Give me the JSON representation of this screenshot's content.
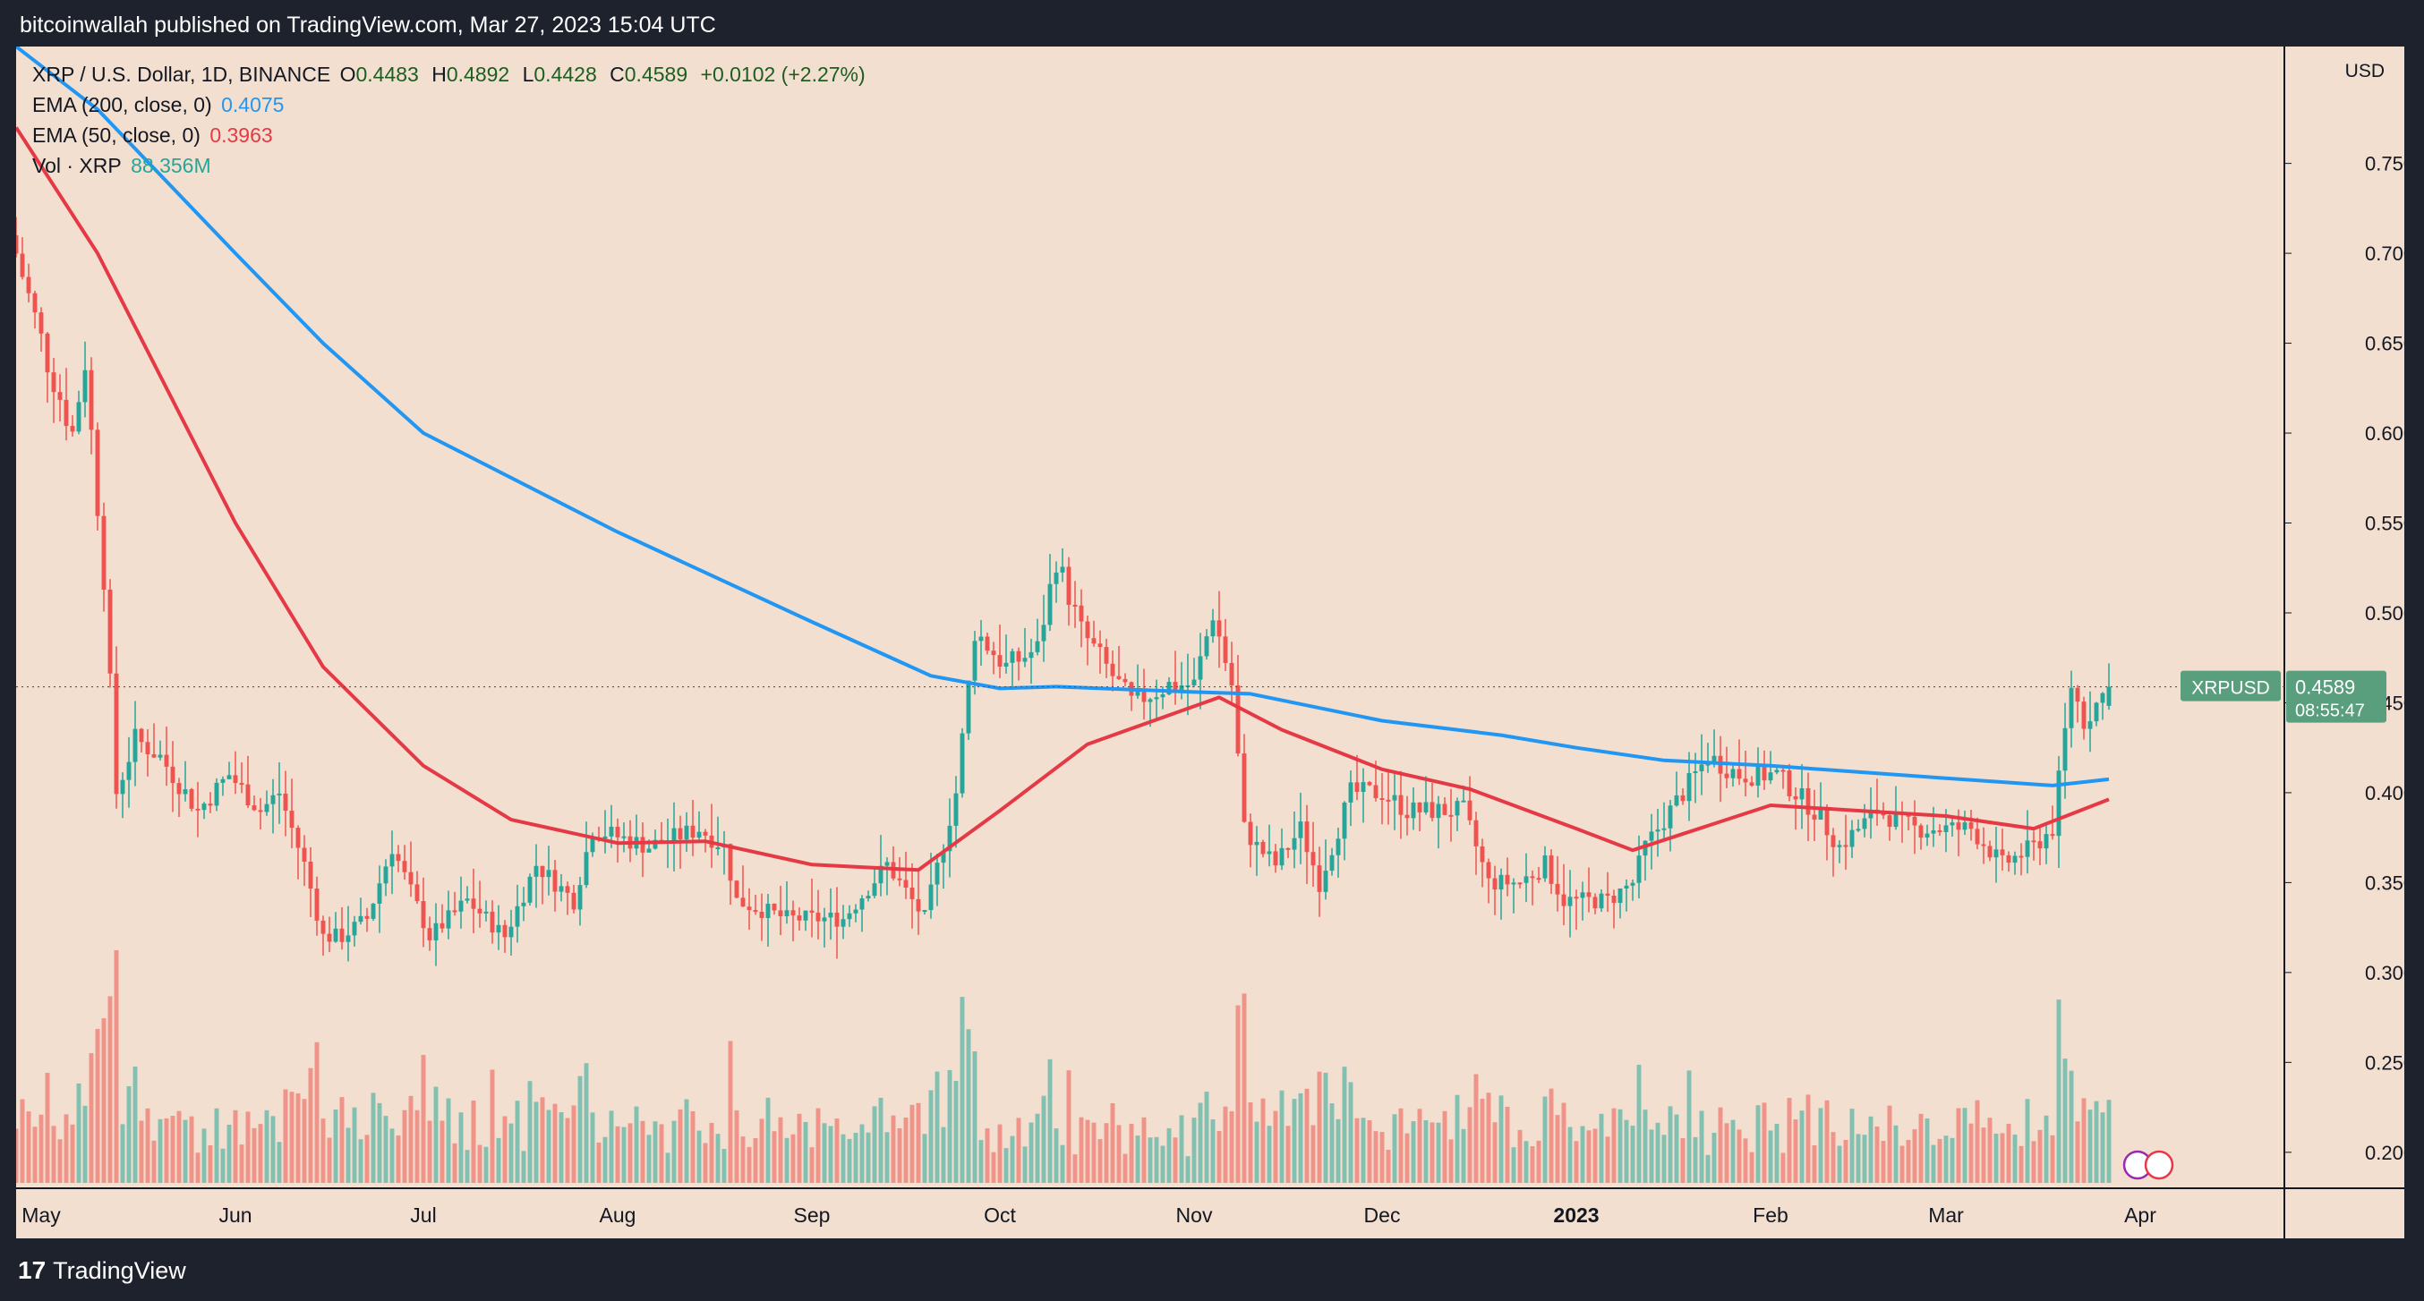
{
  "header": {
    "text": "bitcoinwallah published on TradingView.com, Mar 27, 2023 15:04 UTC"
  },
  "legend": {
    "symbol": "XRP / U.S. Dollar, 1D, BINANCE",
    "o_label": "O",
    "o_value": "0.4483",
    "h_label": "H",
    "h_value": "0.4892",
    "l_label": "L",
    "l_value": "0.4428",
    "c_label": "C",
    "c_value": "0.4589",
    "change": "+0.0102 (+2.27%)",
    "ema200_label": "EMA (200, close, 0)",
    "ema200_value": "0.4075",
    "ema50_label": "EMA (50, close, 0)",
    "ema50_value": "0.3963",
    "vol_label": "Vol · XRP",
    "vol_value": "88.356M"
  },
  "axis": {
    "currency": "USD"
  },
  "price_tag": {
    "symbol": "XRPUSD",
    "price": "0.4589",
    "countdown": "08:55:47"
  },
  "footer": {
    "brand": "TradingView",
    "logo_icon": "tradingview-logo-icon"
  },
  "colors": {
    "background": "#f2dfcf",
    "frame": "#1e222d",
    "up": "#26a69a",
    "down": "#ef5350",
    "ema200": "#2196f3",
    "ema50": "#e53945",
    "tag": "#5a9f7d"
  },
  "chart_data": {
    "type": "candlestick",
    "title": "XRP / U.S. Dollar, 1D, BINANCE",
    "ylim": [
      0.18,
      0.815
    ],
    "xlim": [
      "2022-04-27",
      "2023-04-24"
    ],
    "yticks": [
      "0.2000",
      "0.2500",
      "0.3000",
      "0.3500",
      "0.4000",
      "0.4500",
      "0.5000",
      "0.5500",
      "0.6000",
      "0.6500",
      "0.7000",
      "0.7500"
    ],
    "xticks": [
      {
        "label": "May",
        "date": "2022-05-01"
      },
      {
        "label": "Jun",
        "date": "2022-06-01"
      },
      {
        "label": "Jul",
        "date": "2022-07-01"
      },
      {
        "label": "Aug",
        "date": "2022-08-01"
      },
      {
        "label": "Sep",
        "date": "2022-09-01"
      },
      {
        "label": "Oct",
        "date": "2022-10-01"
      },
      {
        "label": "Nov",
        "date": "2022-11-01"
      },
      {
        "label": "Dec",
        "date": "2022-12-01"
      },
      {
        "label": "2023",
        "date": "2023-01-01",
        "bold": true
      },
      {
        "label": "Feb",
        "date": "2023-02-01"
      },
      {
        "label": "Mar",
        "date": "2023-03-01"
      },
      {
        "label": "Apr",
        "date": "2023-04-01"
      }
    ],
    "first_date": "2022-04-27",
    "last_price": 0.4589,
    "close_path": [
      [
        "2022-04-27",
        0.7
      ],
      [
        "2022-05-02",
        0.64
      ],
      [
        "2022-05-06",
        0.6
      ],
      [
        "2022-05-08",
        0.64
      ],
      [
        "2022-05-11",
        0.52
      ],
      [
        "2022-05-13",
        0.4
      ],
      [
        "2022-05-16",
        0.43
      ],
      [
        "2022-05-20",
        0.42
      ],
      [
        "2022-05-26",
        0.39
      ],
      [
        "2022-05-31",
        0.41
      ],
      [
        "2022-06-05",
        0.39
      ],
      [
        "2022-06-08",
        0.4
      ],
      [
        "2022-06-12",
        0.36
      ],
      [
        "2022-06-15",
        0.32
      ],
      [
        "2022-06-18",
        0.32
      ],
      [
        "2022-06-22",
        0.33
      ],
      [
        "2022-06-26",
        0.37
      ],
      [
        "2022-07-02",
        0.32
      ],
      [
        "2022-07-08",
        0.34
      ],
      [
        "2022-07-14",
        0.32
      ],
      [
        "2022-07-19",
        0.36
      ],
      [
        "2022-07-25",
        0.34
      ],
      [
        "2022-07-28",
        0.38
      ],
      [
        "2022-08-06",
        0.37
      ],
      [
        "2022-08-14",
        0.38
      ],
      [
        "2022-08-18",
        0.37
      ],
      [
        "2022-08-20",
        0.34
      ],
      [
        "2022-08-28",
        0.33
      ],
      [
        "2022-09-06",
        0.33
      ],
      [
        "2022-09-13",
        0.36
      ],
      [
        "2022-09-19",
        0.33
      ],
      [
        "2022-09-24",
        0.4
      ],
      [
        "2022-09-27",
        0.49
      ],
      [
        "2022-10-02",
        0.47
      ],
      [
        "2022-10-07",
        0.48
      ],
      [
        "2022-10-10",
        0.53
      ],
      [
        "2022-10-14",
        0.49
      ],
      [
        "2022-10-18",
        0.47
      ],
      [
        "2022-10-22",
        0.45
      ],
      [
        "2022-10-28",
        0.46
      ],
      [
        "2022-11-01",
        0.46
      ],
      [
        "2022-11-04",
        0.5
      ],
      [
        "2022-11-07",
        0.46
      ],
      [
        "2022-11-09",
        0.38
      ],
      [
        "2022-11-11",
        0.37
      ],
      [
        "2022-11-14",
        0.36
      ],
      [
        "2022-11-18",
        0.38
      ],
      [
        "2022-11-21",
        0.35
      ],
      [
        "2022-11-26",
        0.4
      ],
      [
        "2022-12-01",
        0.4
      ],
      [
        "2022-12-05",
        0.39
      ],
      [
        "2022-12-11",
        0.39
      ],
      [
        "2022-12-14",
        0.39
      ],
      [
        "2022-12-18",
        0.35
      ],
      [
        "2022-12-23",
        0.35
      ],
      [
        "2022-12-27",
        0.36
      ],
      [
        "2022-12-30",
        0.34
      ],
      [
        "2023-01-06",
        0.34
      ],
      [
        "2023-01-10",
        0.35
      ],
      [
        "2023-01-12",
        0.37
      ],
      [
        "2023-01-16",
        0.39
      ],
      [
        "2023-01-22",
        0.42
      ],
      [
        "2023-01-27",
        0.41
      ],
      [
        "2023-02-02",
        0.41
      ],
      [
        "2023-02-08",
        0.39
      ],
      [
        "2023-02-12",
        0.37
      ],
      [
        "2023-02-18",
        0.39
      ],
      [
        "2023-02-24",
        0.38
      ],
      [
        "2023-03-01",
        0.38
      ],
      [
        "2023-03-05",
        0.38
      ],
      [
        "2023-03-10",
        0.36
      ],
      [
        "2023-03-15",
        0.37
      ],
      [
        "2023-03-18",
        0.38
      ],
      [
        "2023-03-21",
        0.46
      ],
      [
        "2023-03-23",
        0.44
      ],
      [
        "2023-03-27",
        0.4589
      ]
    ],
    "ema200": [
      [
        "2022-04-27",
        0.815
      ],
      [
        "2022-05-10",
        0.78
      ],
      [
        "2022-06-01",
        0.7
      ],
      [
        "2022-06-15",
        0.65
      ],
      [
        "2022-07-01",
        0.6
      ],
      [
        "2022-08-01",
        0.545
      ],
      [
        "2022-09-01",
        0.495
      ],
      [
        "2022-09-20",
        0.465
      ],
      [
        "2022-10-01",
        0.458
      ],
      [
        "2022-10-10",
        0.459
      ],
      [
        "2022-11-01",
        0.456
      ],
      [
        "2022-11-10",
        0.455
      ],
      [
        "2022-12-01",
        0.44
      ],
      [
        "2022-12-20",
        0.432
      ],
      [
        "2023-01-01",
        0.425
      ],
      [
        "2023-01-15",
        0.418
      ],
      [
        "2023-02-01",
        0.415
      ],
      [
        "2023-03-01",
        0.408
      ],
      [
        "2023-03-18",
        0.404
      ],
      [
        "2023-03-27",
        0.4075
      ]
    ],
    "ema50": [
      [
        "2022-04-27",
        0.77
      ],
      [
        "2022-05-10",
        0.7
      ],
      [
        "2022-06-01",
        0.55
      ],
      [
        "2022-06-15",
        0.47
      ],
      [
        "2022-07-01",
        0.415
      ],
      [
        "2022-07-15",
        0.385
      ],
      [
        "2022-08-01",
        0.372
      ],
      [
        "2022-08-15",
        0.373
      ],
      [
        "2022-09-01",
        0.36
      ],
      [
        "2022-09-18",
        0.357
      ],
      [
        "2022-10-01",
        0.39
      ],
      [
        "2022-10-15",
        0.427
      ],
      [
        "2022-11-05",
        0.453
      ],
      [
        "2022-11-15",
        0.435
      ],
      [
        "2022-12-01",
        0.413
      ],
      [
        "2022-12-15",
        0.402
      ],
      [
        "2023-01-01",
        0.38
      ],
      [
        "2023-01-10",
        0.368
      ],
      [
        "2023-02-01",
        0.393
      ],
      [
        "2023-02-15",
        0.39
      ],
      [
        "2023-03-01",
        0.387
      ],
      [
        "2023-03-15",
        0.38
      ],
      [
        "2023-03-27",
        0.3963
      ]
    ]
  }
}
